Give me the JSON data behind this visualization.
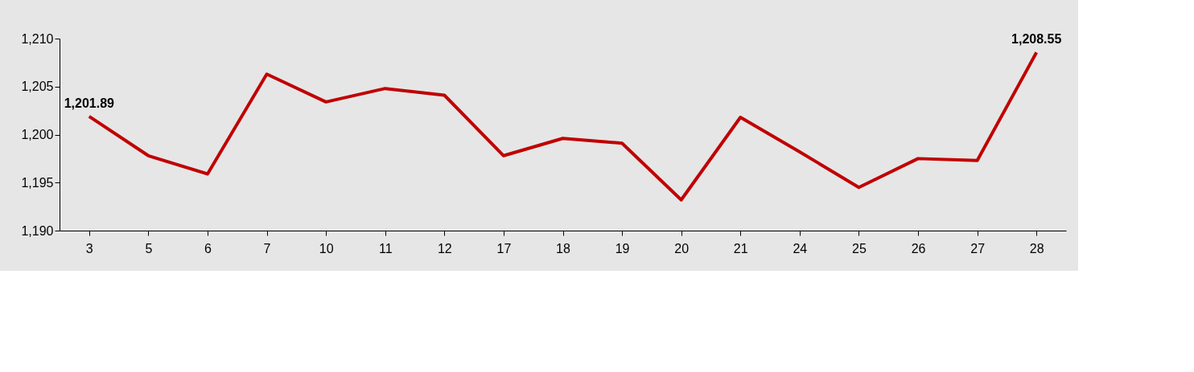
{
  "chart_data": {
    "type": "line",
    "categories": [
      "3",
      "5",
      "6",
      "7",
      "10",
      "11",
      "12",
      "17",
      "18",
      "19",
      "20",
      "21",
      "24",
      "25",
      "26",
      "27",
      "28"
    ],
    "series": [
      {
        "color": "#c00000",
        "values": [
          1201.89,
          1197.8,
          1195.9,
          1206.3,
          1203.4,
          1204.8,
          1204.1,
          1197.8,
          1199.6,
          1199.1,
          1193.2,
          1201.8,
          1198.2,
          1194.5,
          1197.5,
          1197.3,
          1208.55
        ],
        "value_labels": [
          "1,201.89",
          null,
          null,
          null,
          null,
          null,
          null,
          null,
          null,
          null,
          null,
          null,
          null,
          null,
          null,
          null,
          "1,208.55"
        ]
      }
    ],
    "ylim": [
      1190,
      1210
    ],
    "yticks": [
      {
        "value": 1190,
        "label": "1,190"
      },
      {
        "value": 1195,
        "label": "1,195"
      },
      {
        "value": 1200,
        "label": "1,200"
      },
      {
        "value": 1205,
        "label": "1,205"
      },
      {
        "value": 1210,
        "label": "1,210"
      }
    ],
    "grid": false,
    "marker": "none",
    "line_style": "solid"
  }
}
